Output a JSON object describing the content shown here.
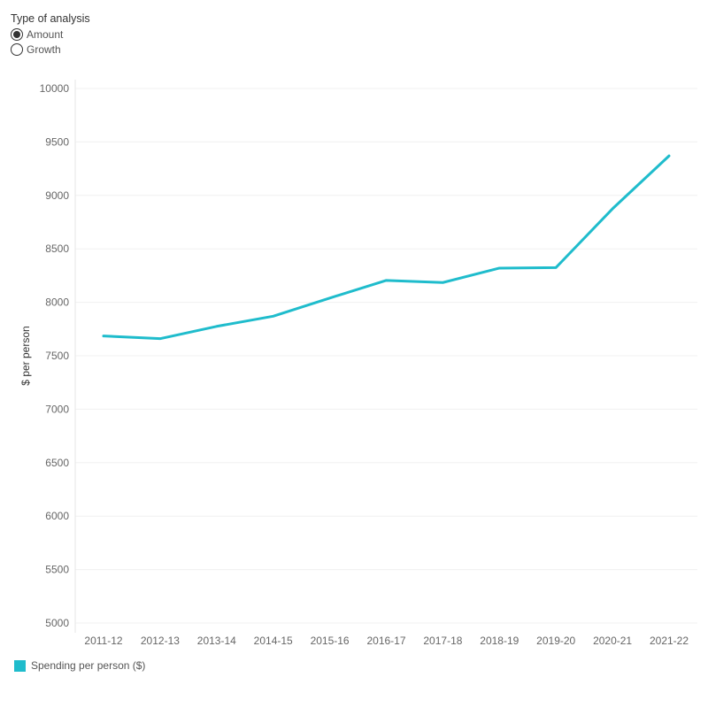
{
  "control": {
    "title": "Type of analysis",
    "options": [
      {
        "label": "Amount",
        "selected": true
      },
      {
        "label": "Growth",
        "selected": false
      }
    ]
  },
  "chart_data": {
    "type": "line",
    "title": "",
    "xlabel": "",
    "ylabel": "$ per person",
    "ylim": [
      5000,
      10000
    ],
    "yticks": [
      5000,
      5500,
      6000,
      6500,
      7000,
      7500,
      8000,
      8500,
      9000,
      9500,
      10000
    ],
    "categories": [
      "2011-12",
      "2012-13",
      "2013-14",
      "2014-15",
      "2015-16",
      "2016-17",
      "2017-18",
      "2018-19",
      "2019-20",
      "2020-21",
      "2021-22"
    ],
    "series": [
      {
        "name": "Spending per person ($)",
        "color": "#1fbccc",
        "values": [
          7685,
          7660,
          7775,
          7870,
          8040,
          8205,
          8185,
          8320,
          8325,
          8875,
          9370
        ]
      }
    ],
    "grid": true,
    "legend_position": "bottom-left"
  }
}
